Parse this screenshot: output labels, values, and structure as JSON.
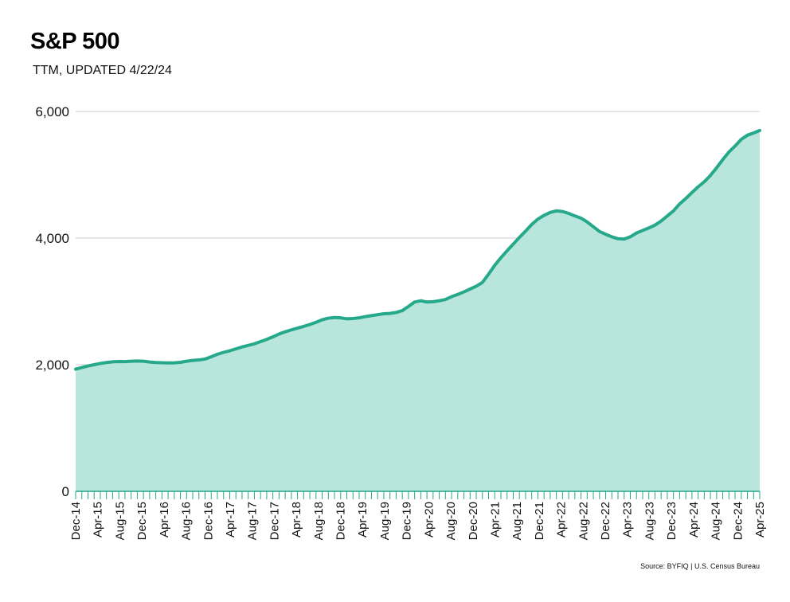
{
  "header": {
    "title": "S&P 500",
    "subtitle": "TTM, UPDATED 4/22/24"
  },
  "footer": {
    "source": "Source: BYFIQ | U.S. Census Bureau"
  },
  "colors": {
    "line": "#26a88a",
    "area": "#b9e6dc",
    "grid": "#cccccc",
    "axis": "#26a88a"
  },
  "chart_data": {
    "type": "area",
    "title": "S&P 500",
    "subtitle": "TTM, UPDATED 4/22/24",
    "xlabel": "",
    "ylabel": "",
    "ylim": [
      0,
      6000
    ],
    "y_ticks": [
      0,
      2000,
      4000,
      6000
    ],
    "y_tick_labels": [
      "0",
      "2,000",
      "4,000",
      "6,000"
    ],
    "x_start": "Dec-14",
    "x_end": "Apr-25",
    "x_tick_labels": [
      "Dec-14",
      "Apr-15",
      "Aug-15",
      "Dec-15",
      "Apr-16",
      "Aug-16",
      "Dec-16",
      "Apr-17",
      "Aug-17",
      "Dec-17",
      "Apr-18",
      "Aug-18",
      "Dec-18",
      "Apr-19",
      "Aug-19",
      "Dec-19",
      "Apr-20",
      "Aug-20",
      "Dec-20",
      "Apr-21",
      "Aug-21",
      "Dec-21",
      "Apr-22",
      "Aug-22",
      "Dec-22",
      "Apr-23",
      "Aug-23",
      "Dec-23",
      "Apr-24",
      "Aug-24",
      "Dec-24",
      "Apr-25"
    ],
    "grid": true,
    "series": [
      {
        "name": "S&P 500",
        "values": [
          1930,
          1955,
          1980,
          2000,
          2020,
          2035,
          2045,
          2050,
          2048,
          2055,
          2058,
          2055,
          2042,
          2035,
          2032,
          2028,
          2030,
          2038,
          2055,
          2068,
          2075,
          2090,
          2125,
          2165,
          2195,
          2220,
          2250,
          2280,
          2305,
          2330,
          2365,
          2400,
          2440,
          2485,
          2520,
          2550,
          2578,
          2605,
          2635,
          2670,
          2710,
          2735,
          2745,
          2740,
          2725,
          2730,
          2740,
          2760,
          2775,
          2790,
          2805,
          2810,
          2825,
          2855,
          2920,
          2990,
          3010,
          2990,
          2995,
          3010,
          3030,
          3075,
          3110,
          3150,
          3195,
          3240,
          3300,
          3430,
          3570,
          3690,
          3800,
          3905,
          4010,
          4110,
          4215,
          4300,
          4360,
          4405,
          4430,
          4420,
          4390,
          4350,
          4315,
          4255,
          4180,
          4105,
          4060,
          4020,
          3990,
          3985,
          4020,
          4080,
          4120,
          4160,
          4205,
          4270,
          4350,
          4430,
          4540,
          4625,
          4720,
          4810,
          4890,
          4990,
          5110,
          5240,
          5360,
          5455,
          5560,
          5625,
          5660,
          5700
        ]
      }
    ]
  }
}
